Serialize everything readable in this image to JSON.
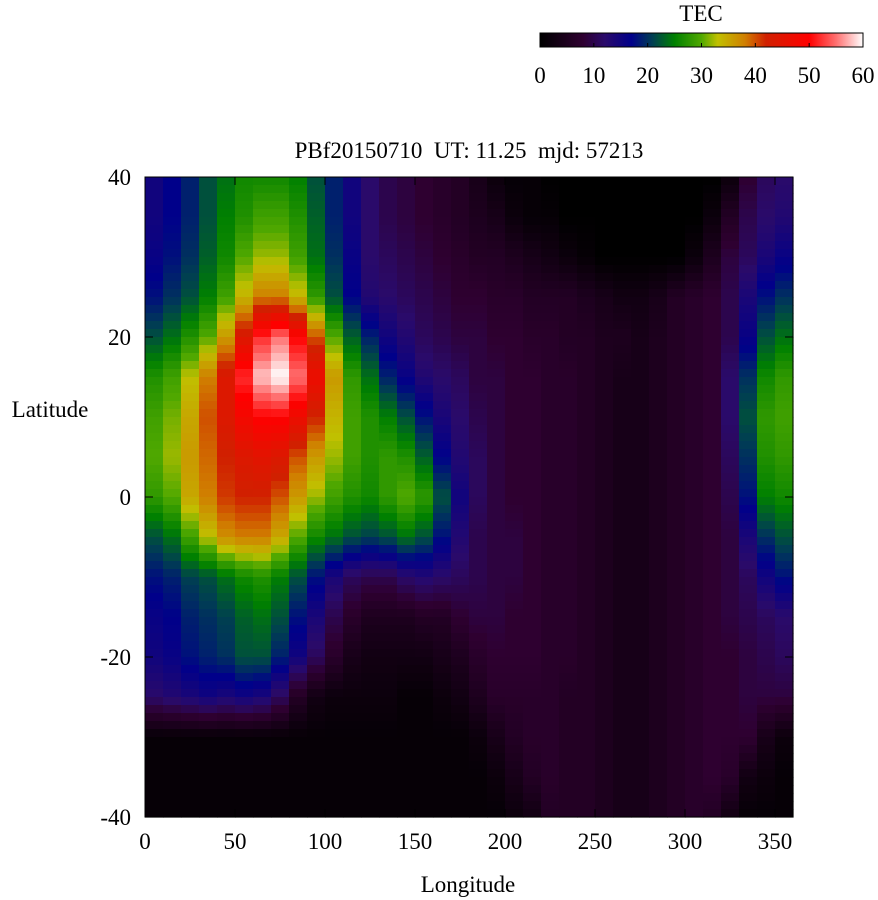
{
  "chart_data": {
    "type": "heatmap",
    "title": "PBf20150710  UT: 11.25  mjd: 57213",
    "xlabel": "Longitude",
    "ylabel": "Latitude",
    "xlim": [
      0,
      360
    ],
    "ylim": [
      -40,
      40
    ],
    "xticks": [
      "0",
      "50",
      "100",
      "150",
      "200",
      "250",
      "300",
      "350"
    ],
    "yticks": [
      "40",
      "20",
      "0",
      "-20",
      "-40"
    ],
    "colorbar": {
      "label": "TEC",
      "range": [
        0,
        60
      ],
      "ticks": [
        "0",
        "10",
        "20",
        "30",
        "40",
        "50",
        "60"
      ],
      "colors": [
        [
          0,
          "#000000"
        ],
        [
          8,
          "#2e0030"
        ],
        [
          12,
          "#2a0a6a"
        ],
        [
          17,
          "#00008a"
        ],
        [
          21,
          "#004050"
        ],
        [
          25,
          "#008000"
        ],
        [
          30,
          "#50a800"
        ],
        [
          33,
          "#c0c000"
        ],
        [
          38,
          "#d08000"
        ],
        [
          42,
          "#d02000"
        ],
        [
          50,
          "#ff0000"
        ],
        [
          55,
          "#ff7070"
        ],
        [
          60,
          "#ffffff"
        ]
      ]
    },
    "lon_centers": [
      5,
      15,
      25,
      35,
      45,
      55,
      65,
      75,
      85,
      95,
      105,
      115,
      125,
      135,
      145,
      155,
      165,
      175,
      185,
      195,
      205,
      215,
      225,
      235,
      245,
      255,
      265,
      275,
      285,
      295,
      305,
      315,
      325,
      335,
      345,
      355
    ],
    "lat_rows": [
      40,
      35,
      30,
      25,
      20,
      15,
      10,
      5,
      0,
      -5,
      -10,
      -15,
      -20,
      -25,
      -30,
      -35,
      -40
    ],
    "values": [
      [
        15,
        17,
        19,
        22,
        24,
        26,
        26,
        26,
        25,
        22,
        19,
        15,
        12,
        10,
        9,
        8,
        7,
        6,
        4,
        2,
        1,
        1,
        0,
        0,
        0,
        0,
        0,
        0,
        0,
        0,
        0,
        0,
        2,
        8,
        11,
        12
      ],
      [
        15,
        17,
        19,
        22,
        25,
        27,
        29,
        29,
        27,
        23,
        19,
        15,
        12,
        10,
        9,
        8,
        7,
        6,
        5,
        4,
        2,
        1,
        1,
        0,
        0,
        0,
        0,
        0,
        0,
        0,
        0,
        2,
        6,
        10,
        12,
        13
      ],
      [
        16,
        18,
        20,
        23,
        26,
        30,
        32,
        32,
        29,
        24,
        20,
        16,
        12,
        11,
        10,
        9,
        8,
        7,
        6,
        6,
        5,
        4,
        3,
        2,
        1,
        0,
        0,
        0,
        0,
        0,
        2,
        5,
        9,
        11,
        14,
        16
      ],
      [
        18,
        20,
        22,
        25,
        29,
        34,
        38,
        38,
        34,
        28,
        22,
        17,
        13,
        12,
        11,
        10,
        9,
        8,
        8,
        7,
        7,
        6,
        6,
        6,
        5,
        4,
        3,
        3,
        4,
        6,
        7,
        8,
        10,
        14,
        18,
        20
      ],
      [
        22,
        24,
        27,
        30,
        36,
        44,
        52,
        55,
        50,
        40,
        30,
        23,
        19,
        15,
        13,
        11,
        10,
        9,
        9,
        8,
        8,
        7,
        7,
        6,
        6,
        5,
        5,
        4,
        5,
        6,
        7,
        8,
        10,
        16,
        22,
        24
      ],
      [
        27,
        29,
        33,
        38,
        44,
        52,
        58,
        60,
        55,
        47,
        36,
        28,
        24,
        19,
        16,
        13,
        12,
        11,
        9,
        9,
        8,
        8,
        7,
        7,
        6,
        5,
        4,
        4,
        5,
        6,
        7,
        8,
        12,
        20,
        26,
        28
      ],
      [
        29,
        31,
        35,
        40,
        44,
        48,
        50,
        50,
        47,
        42,
        34,
        29,
        27,
        25,
        22,
        18,
        14,
        12,
        10,
        9,
        8,
        8,
        7,
        7,
        6,
        5,
        4,
        4,
        5,
        6,
        7,
        8,
        12,
        22,
        28,
        29
      ],
      [
        30,
        32,
        36,
        39,
        42,
        44,
        45,
        44,
        40,
        36,
        32,
        29,
        27,
        28,
        27,
        23,
        17,
        13,
        11,
        9,
        8,
        8,
        7,
        7,
        6,
        5,
        4,
        4,
        5,
        6,
        7,
        8,
        11,
        20,
        27,
        28
      ],
      [
        28,
        30,
        35,
        38,
        41,
        42,
        42,
        40,
        36,
        32,
        29,
        27,
        26,
        28,
        30,
        28,
        22,
        15,
        11,
        9,
        8,
        8,
        7,
        7,
        6,
        5,
        4,
        4,
        5,
        6,
        7,
        8,
        10,
        18,
        25,
        26
      ],
      [
        22,
        24,
        29,
        33,
        37,
        38,
        38,
        35,
        30,
        26,
        24,
        22,
        21,
        22,
        24,
        22,
        18,
        13,
        10,
        9,
        9,
        8,
        7,
        7,
        6,
        5,
        4,
        4,
        5,
        6,
        7,
        8,
        9,
        14,
        20,
        22
      ],
      [
        18,
        19,
        21,
        22,
        24,
        26,
        27,
        25,
        22,
        18,
        14,
        11,
        10,
        10,
        12,
        13,
        12,
        11,
        10,
        9,
        9,
        8,
        7,
        7,
        6,
        5,
        4,
        4,
        5,
        6,
        7,
        8,
        9,
        11,
        15,
        18
      ],
      [
        16,
        17,
        19,
        20,
        21,
        23,
        24,
        22,
        18,
        14,
        10,
        7,
        5,
        5,
        5,
        6,
        6,
        8,
        9,
        9,
        8,
        8,
        7,
        7,
        6,
        5,
        4,
        4,
        5,
        6,
        7,
        8,
        9,
        10,
        11,
        12
      ],
      [
        15,
        16,
        18,
        19,
        20,
        22,
        22,
        19,
        15,
        11,
        7,
        4,
        3,
        3,
        3,
        3,
        4,
        5,
        7,
        8,
        8,
        8,
        7,
        7,
        6,
        5,
        4,
        4,
        5,
        6,
        7,
        8,
        8,
        9,
        10,
        11
      ],
      [
        12,
        13,
        14,
        15,
        14,
        15,
        14,
        11,
        6,
        3,
        2,
        2,
        2,
        2,
        1,
        1,
        2,
        3,
        5,
        7,
        7,
        7,
        7,
        6,
        6,
        5,
        4,
        4,
        5,
        6,
        7,
        8,
        8,
        9,
        9,
        9
      ],
      [
        1,
        1,
        1,
        1,
        1,
        1,
        1,
        1,
        1,
        1,
        1,
        1,
        1,
        1,
        1,
        1,
        1,
        1,
        2,
        4,
        6,
        7,
        7,
        6,
        6,
        5,
        4,
        4,
        5,
        6,
        7,
        8,
        8,
        8,
        4,
        2
      ],
      [
        1,
        1,
        1,
        1,
        1,
        1,
        1,
        1,
        1,
        1,
        1,
        1,
        1,
        1,
        1,
        1,
        1,
        1,
        1,
        2,
        4,
        6,
        7,
        6,
        6,
        5,
        4,
        4,
        5,
        6,
        7,
        8,
        7,
        3,
        2,
        1
      ],
      [
        1,
        1,
        1,
        1,
        1,
        1,
        1,
        1,
        1,
        1,
        1,
        1,
        1,
        1,
        1,
        1,
        1,
        1,
        1,
        1,
        2,
        3,
        6,
        6,
        6,
        5,
        4,
        4,
        5,
        6,
        7,
        6,
        3,
        1,
        1,
        1
      ]
    ]
  }
}
